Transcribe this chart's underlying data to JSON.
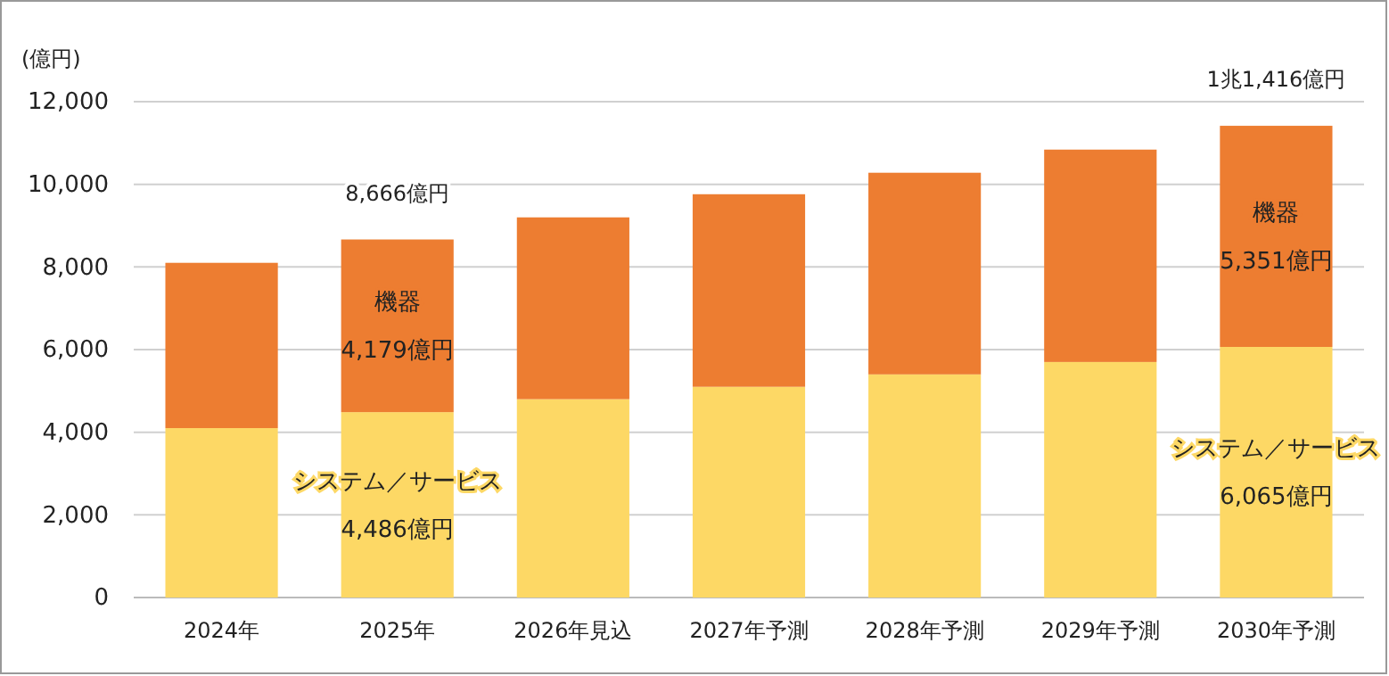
{
  "chart_data": {
    "type": "bar",
    "stacked": true,
    "ylabel": "(億円)",
    "categories": [
      "2024年",
      "2025年",
      "2026年見込",
      "2027年予測",
      "2028年予測",
      "2029年予測",
      "2030年予測"
    ],
    "series": [
      {
        "name": "システム／サービス",
        "color": "#fdd865",
        "values": [
          4100,
          4486,
          4800,
          5100,
          5400,
          5700,
          6065
        ],
        "value_labels": [
          null,
          "4,486億円",
          null,
          null,
          null,
          null,
          "6,065億円"
        ]
      },
      {
        "name": "機器",
        "color": "#ed7d31",
        "values": [
          4000,
          4179,
          4400,
          4660,
          4880,
          5140,
          5351
        ],
        "value_labels": [
          null,
          "4,179億円",
          null,
          null,
          null,
          null,
          "5,351億円"
        ]
      }
    ],
    "totals": [
      null,
      "8,666億円",
      null,
      null,
      null,
      null,
      "1兆1,416億円"
    ],
    "ylim": [
      0,
      12000
    ],
    "yticks": [
      0,
      {
        "value": 2000,
        "label": "2,000"
      },
      {
        "value": 4000,
        "label": "4,000"
      },
      {
        "value": 6000,
        "label": "6,000"
      },
      {
        "value": 8000,
        "label": "8,000"
      },
      {
        "value": 10000,
        "label": "10,000"
      },
      {
        "value": 12000,
        "label": "12,000"
      }
    ],
    "grid": "y"
  }
}
